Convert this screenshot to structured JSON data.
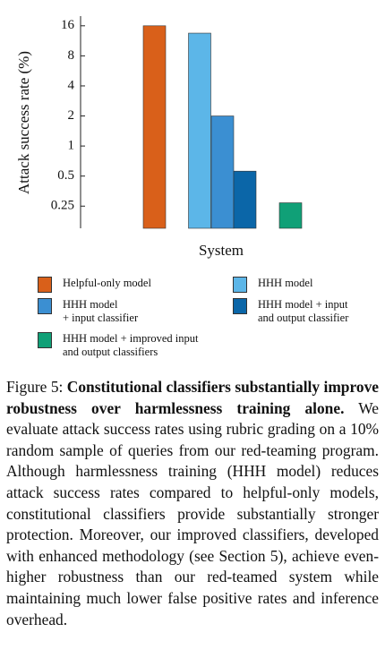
{
  "chart_data": {
    "type": "bar",
    "log_scale": true,
    "ylabel": "Attack success rate (%)",
    "xlabel": "System",
    "ylim": [
      0.15,
      20
    ],
    "yticks": [
      0.25,
      0.5,
      1,
      2,
      4,
      8,
      16
    ],
    "series": [
      {
        "name": "Helpful-only model",
        "color": "#d9601a",
        "values": [
          16
        ]
      },
      {
        "name": "HHH model",
        "color": "#5cb6e8",
        "values": [
          13.5
        ]
      },
      {
        "name": "HHH model\n+ input classifier",
        "color": "#3b8fd2",
        "values": [
          2
        ]
      },
      {
        "name": "HHH model + input\nand output classifier",
        "color": "#0b66a8",
        "values": [
          0.56
        ]
      },
      {
        "name": "HHH model + improved input\nand output classifiers",
        "color": "#10a077",
        "values": [
          0.27
        ]
      }
    ]
  },
  "caption": {
    "label": "Figure 5:",
    "bold": "Constitutional classifiers substantially improve robustness over harmlessness training alone.",
    "text": "We evaluate attack success rates using rubric grading on a 10% random sample of queries from our red-teaming program. Although harmlessness training (HHH model) reduces attack success rates compared to helpful-only models, constitutional classifiers provide substantially stronger protection. Moreover, our improved classifiers, developed with enhanced methodology (see Section 5), achieve even-higher robustness than our red-teamed system while maintaining much lower false positive rates and inference overhead."
  }
}
